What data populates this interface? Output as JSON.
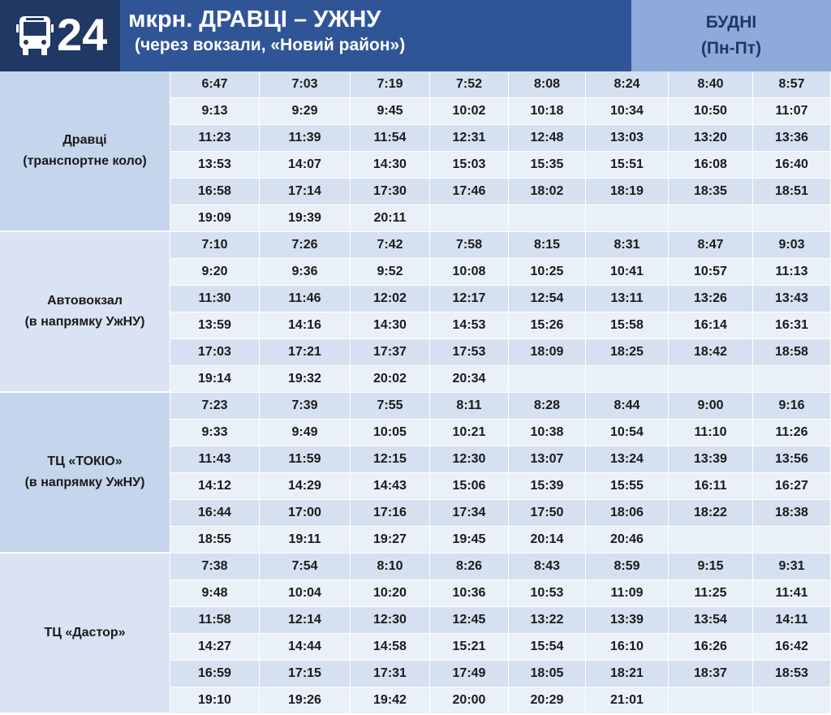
{
  "header": {
    "route": "24",
    "title": "мкрн. ДРАВЦІ – УЖНУ",
    "subtitle": "(через вокзали, «Новий район»)",
    "days": "БУДНІ",
    "days_note": "(Пн-Пт)"
  },
  "sections": [
    {
      "stop": [
        "Дравці",
        "(транспортне коло)"
      ],
      "rows": [
        [
          "6:47",
          "7:03",
          "7:19",
          "7:52",
          "8:08",
          "8:24",
          "8:40",
          "8:57"
        ],
        [
          "9:13",
          "9:29",
          "9:45",
          "10:02",
          "10:18",
          "10:34",
          "10:50",
          "11:07"
        ],
        [
          "11:23",
          "11:39",
          "11:54",
          "12:31",
          "12:48",
          "13:03",
          "13:20",
          "13:36"
        ],
        [
          "13:53",
          "14:07",
          "14:30",
          "15:03",
          "15:35",
          "15:51",
          "16:08",
          "16:40"
        ],
        [
          "16:58",
          "17:14",
          "17:30",
          "17:46",
          "18:02",
          "18:19",
          "18:35",
          "18:51"
        ],
        [
          "19:09",
          "19:39",
          "20:11"
        ]
      ]
    },
    {
      "stop": [
        "Автовокзал",
        "(в напрямку УжНУ)"
      ],
      "rows": [
        [
          "7:10",
          "7:26",
          "7:42",
          "7:58",
          "8:15",
          "8:31",
          "8:47",
          "9:03"
        ],
        [
          "9:20",
          "9:36",
          "9:52",
          "10:08",
          "10:25",
          "10:41",
          "10:57",
          "11:13"
        ],
        [
          "11:30",
          "11:46",
          "12:02",
          "12:17",
          "12:54",
          "13:11",
          "13:26",
          "13:43"
        ],
        [
          "13:59",
          "14:16",
          "14:30",
          "14:53",
          "15:26",
          "15:58",
          "16:14",
          "16:31"
        ],
        [
          "17:03",
          "17:21",
          "17:37",
          "17:53",
          "18:09",
          "18:25",
          "18:42",
          "18:58"
        ],
        [
          "19:14",
          "19:32",
          "20:02",
          "20:34"
        ]
      ]
    },
    {
      "stop": [
        "ТЦ «ТОКІО»",
        "(в напрямку УжНУ)"
      ],
      "rows": [
        [
          "7:23",
          "7:39",
          "7:55",
          "8:11",
          "8:28",
          "8:44",
          "9:00",
          "9:16"
        ],
        [
          "9:33",
          "9:49",
          "10:05",
          "10:21",
          "10:38",
          "10:54",
          "11:10",
          "11:26"
        ],
        [
          "11:43",
          "11:59",
          "12:15",
          "12:30",
          "13:07",
          "13:24",
          "13:39",
          "13:56"
        ],
        [
          "14:12",
          "14:29",
          "14:43",
          "15:06",
          "15:39",
          "15:55",
          "16:11",
          "16:27"
        ],
        [
          "16:44",
          "17:00",
          "17:16",
          "17:34",
          "17:50",
          "18:06",
          "18:22",
          "18:38"
        ],
        [
          "18:55",
          "19:11",
          "19:27",
          "19:45",
          "20:14",
          "20:46"
        ]
      ]
    },
    {
      "stop": [
        "ТЦ «Дастор»"
      ],
      "rows": [
        [
          "7:38",
          "7:54",
          "8:10",
          "8:26",
          "8:43",
          "8:59",
          "9:15",
          "9:31"
        ],
        [
          "9:48",
          "10:04",
          "10:20",
          "10:36",
          "10:53",
          "11:09",
          "11:25",
          "11:41"
        ],
        [
          "11:58",
          "12:14",
          "12:30",
          "12:45",
          "13:22",
          "13:39",
          "13:54",
          "14:11"
        ],
        [
          "14:27",
          "14:44",
          "14:58",
          "15:21",
          "15:54",
          "16:10",
          "16:26",
          "16:42"
        ],
        [
          "16:59",
          "17:15",
          "17:31",
          "17:49",
          "18:05",
          "18:21",
          "18:37",
          "18:53"
        ],
        [
          "19:10",
          "19:26",
          "19:42",
          "20:00",
          "20:29",
          "21:01"
        ]
      ]
    }
  ]
}
